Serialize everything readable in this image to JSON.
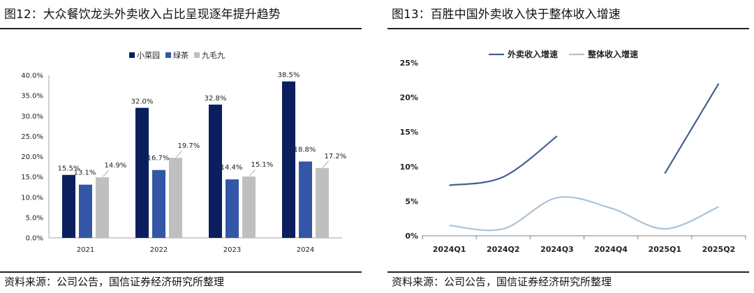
{
  "colors": {
    "xiaocaiyuan": "#0b1f5e",
    "lvcha": "#3357a6",
    "jiumaojiu": "#bfbfbf",
    "takeaway_growth": "#44608f",
    "overall_growth": "#adc2d4",
    "text": "#111111",
    "rule": "#222222"
  },
  "left": {
    "title": "图12：大众餐饮龙头外卖收入占比呈现逐年提升趋势",
    "source": "资料来源：公司公告，国信证券经济研究所整理"
  },
  "right": {
    "title": "图13：百胜中国外卖收入快于整体收入增速",
    "source": "资料来源：公司公告，国信证券经济研究所整理"
  },
  "chart_data": [
    {
      "type": "bar",
      "categories": [
        "2021",
        "2022",
        "2023",
        "2024"
      ],
      "series": [
        {
          "name": "小菜园",
          "values": [
            15.5,
            32.0,
            32.8,
            38.5
          ],
          "labels": [
            "15.5%",
            "32.0%",
            "32.8%",
            "38.5%"
          ]
        },
        {
          "name": "绿茶",
          "values": [
            13.1,
            16.7,
            14.4,
            18.8
          ],
          "labels": [
            "13.1%",
            "16.7%",
            "14.4%",
            "18.8%"
          ]
        },
        {
          "name": "九毛九",
          "values": [
            14.9,
            19.7,
            15.1,
            17.2
          ],
          "labels": [
            "14.9%",
            "19.7%",
            "15.1%",
            "17.2%"
          ]
        }
      ],
      "ylim": [
        0,
        40
      ],
      "yticks": [
        "0.0%",
        "5.0%",
        "10.0%",
        "15.0%",
        "20.0%",
        "25.0%",
        "30.0%",
        "35.0%",
        "40.0%"
      ],
      "grid": false,
      "legend": "top"
    },
    {
      "type": "line",
      "categories": [
        "2024Q1",
        "2024Q2",
        "2024Q3",
        "2024Q4",
        "2025Q1",
        "2025Q2"
      ],
      "series": [
        {
          "name": "外卖收入增速",
          "values": [
            7.3,
            8.5,
            14.4,
            null,
            9.0,
            22.0
          ]
        },
        {
          "name": "整体收入增速",
          "values": [
            1.5,
            1.0,
            5.5,
            4.0,
            1.0,
            4.2
          ]
        }
      ],
      "ylim": [
        0,
        25
      ],
      "yticks": [
        "0%",
        "5%",
        "10%",
        "15%",
        "20%",
        "25%"
      ],
      "grid": false,
      "legend": "top"
    }
  ]
}
